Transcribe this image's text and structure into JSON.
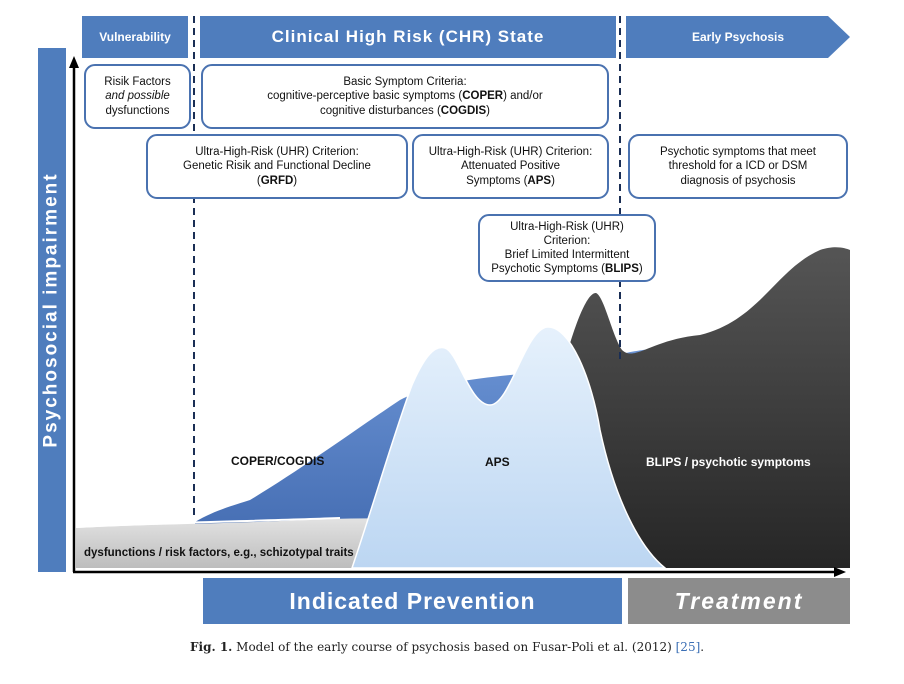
{
  "phases": {
    "vulnerability": "Vulnerability",
    "chr": "Clinical High Risk (CHR) State",
    "early_psychosis": "Early Psychosis"
  },
  "criteria": {
    "risk_factors": {
      "line1": "Risik Factors",
      "line2": "and possible",
      "line3": "dysfunctions"
    },
    "basic_symptom": {
      "line1": "Basic Symptom Criteria:",
      "line2a": "cognitive-perceptive  basic symptoms (",
      "line2b": "COPER",
      "line2c": ") and/or",
      "line3a": "cognitive disturbances (",
      "line3b": "COGDIS",
      "line3c": ")"
    },
    "grfd": {
      "line1": "Ultra-High-Risk  (UHR)  Criterion:",
      "line2": "Genetic Risik and Functional Decline",
      "line3a": "(",
      "line3b": "GRFD",
      "line3c": ")"
    },
    "aps": {
      "line1": "Ultra-High-Risk  (UHR)  Criterion:",
      "line2": "Attenuated Positive",
      "line3a": "Symptoms  (",
      "line3b": "APS",
      "line3c": ")"
    },
    "blips": {
      "line1": "Ultra-High-Risk  (UHR)  Criterion:",
      "line2": "Brief Limited Intermittent",
      "line3a": "Psychotic Symptoms (",
      "line3b": "BLIPS",
      "line3c": ")"
    },
    "psychosis": {
      "line1": "Psychotic symptoms that meet",
      "line2": "threshold for a ICD or DSM",
      "line3": "diagnosis of psychosis"
    }
  },
  "y_axis_label": "Psychosocial impairment",
  "area_labels": {
    "coper_cogdis": "COPER/COGDIS",
    "aps": "APS",
    "blips_psychotic": "BLIPS / psychotic symptoms",
    "dysfunctions": "dysfunctions / risk factors, e.g., schizotypal traits"
  },
  "bottom_bars": {
    "indicated_prevention": "Indicated Prevention",
    "treatment": "Treatment"
  },
  "caption": {
    "fig": "Fig. 1.",
    "text": " Model of the early course of psychosis based on Fusar-Poli et al. (2012) ",
    "ref": "[25]",
    "end": "."
  },
  "colors": {
    "phase_blue": "#4f7dbd",
    "coper_blue": "#4f78c0",
    "aps_light_blue": "#cfe3f8",
    "psychosis_dark": "#3a3a3a",
    "dysfunction_gray": "#cfcfcf",
    "treatment_gray": "#8c8c8c"
  }
}
